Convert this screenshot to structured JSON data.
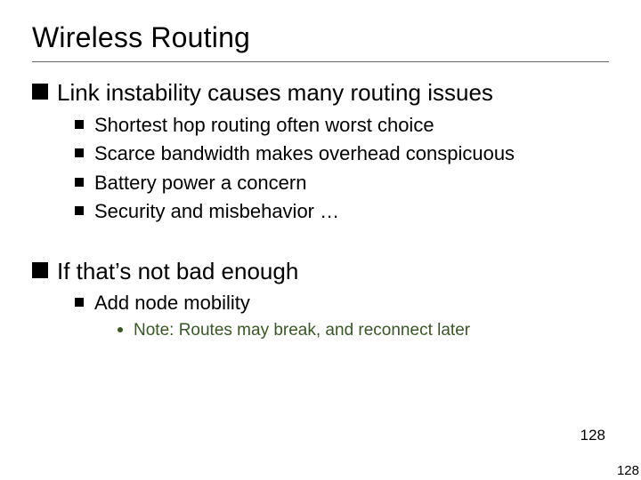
{
  "title": "Wireless Routing",
  "blocks": {
    "b1": {
      "heading": "Link instability causes many routing issues",
      "items": [
        "Shortest hop routing often worst choice",
        "Scarce bandwidth makes overhead conspicuous",
        "Battery power a concern",
        "Security and misbehavior …"
      ]
    },
    "b2": {
      "heading": "If that’s not bad enough",
      "items": [
        "Add node mobility"
      ],
      "note": "Note: Routes may break, and reconnect later"
    }
  },
  "page_number_inner": "128",
  "page_number_outer": "128",
  "colors": {
    "text": "#000000",
    "note_text": "#385723",
    "rule": "#666666",
    "background": "#ffffff"
  },
  "fonts": {
    "title_size_pt": 32,
    "lvl1_size_pt": 26,
    "lvl2_size_pt": 22,
    "lvl3_size_pt": 19,
    "pagenum_size_pt": 17
  }
}
